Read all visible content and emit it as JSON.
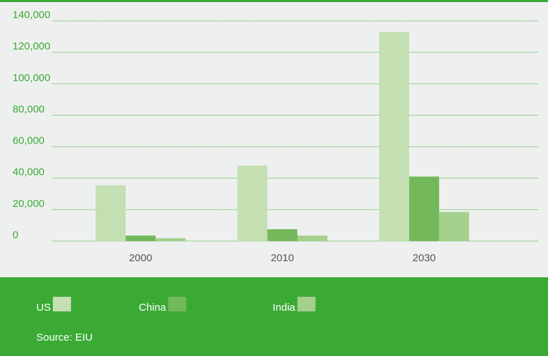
{
  "chart_data": {
    "type": "bar",
    "source": "Source: EIU",
    "categories": [
      "2000",
      "2010",
      "2030"
    ],
    "series": [
      {
        "name": "US",
        "color": "#c4dfb2",
        "values": [
          35500,
          48000,
          133000
        ]
      },
      {
        "name": "China",
        "color": "#73b95b",
        "values": [
          3500,
          7500,
          41000
        ]
      },
      {
        "name": "India",
        "color": "#a4d08c",
        "values": [
          1800,
          3500,
          18500
        ]
      }
    ],
    "ylim": [
      0,
      140000
    ],
    "yticks": [
      0,
      {
        "value": 20000,
        "label": "20,000"
      },
      {
        "value": 40000,
        "label": "40,000"
      },
      {
        "value": 60000,
        "label": "60,000"
      },
      {
        "value": 80000,
        "label": "80,000"
      },
      {
        "value": 100000,
        "label": "100,000"
      },
      {
        "value": 120000,
        "label": "120,000"
      },
      {
        "value": 140000,
        "label": "140,000"
      }
    ],
    "grid": true
  }
}
